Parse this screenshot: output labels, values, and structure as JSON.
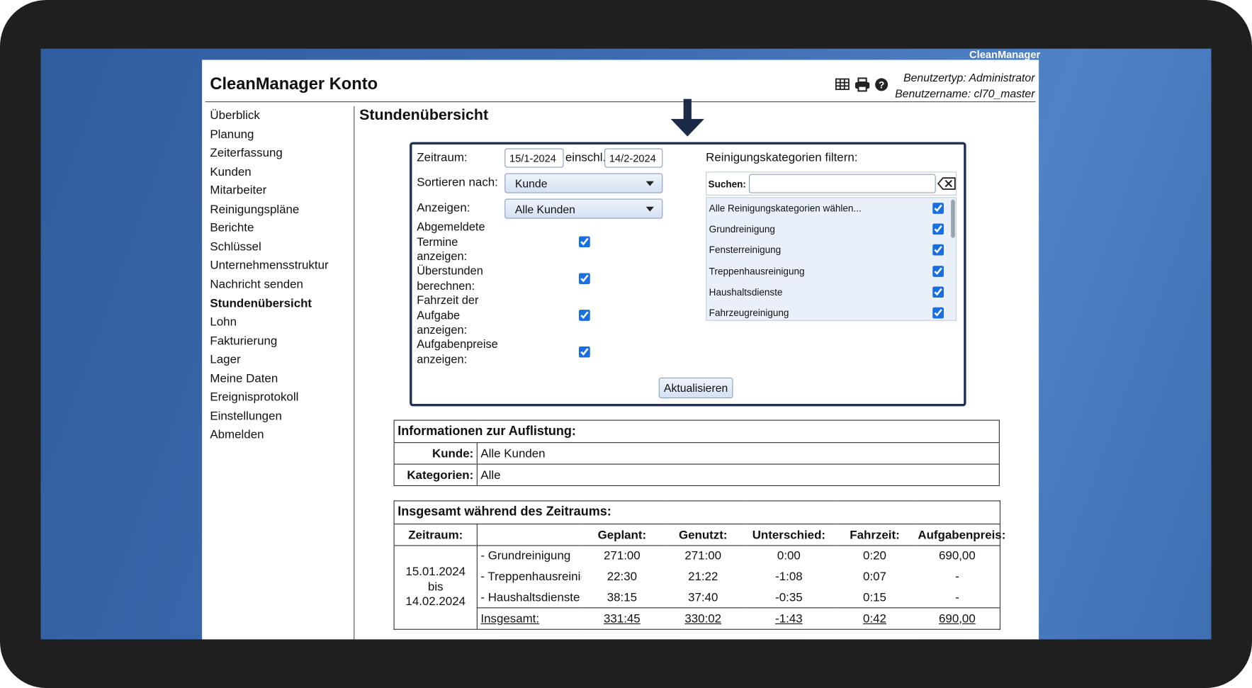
{
  "brand": "CleanManager",
  "header": {
    "title": "CleanManager Konto",
    "user_type": "Benutzertyp: Administrator",
    "user_name": "Benutzername: cl70_master"
  },
  "nav": {
    "items": [
      "Überblick",
      "Planung",
      "Zeiterfassung",
      "Kunden",
      "Mitarbeiter",
      "Reinigungspläne",
      "Berichte",
      "Schlüssel",
      "Unternehmensstruktur",
      "Nachricht senden",
      "Stundenübersicht",
      "Lohn",
      "Fakturierung",
      "Lager",
      "Meine Daten",
      "Ereignisprotokoll",
      "Einstellungen",
      "Abmelden"
    ],
    "active": 10
  },
  "page_title": "Stundenübersicht",
  "filter": {
    "period_label": "Zeitraum:",
    "from": "15/1-2024",
    "inclusive": "einschl.",
    "to": "14/2-2024",
    "sort_label": "Sortieren nach:",
    "sort_value": "Kunde",
    "show_label": "Anzeigen:",
    "show_value": "Alle Kunden",
    "options": [
      {
        "label": "Abgemeldete Termine anzeigen:",
        "checked": true
      },
      {
        "label": "Überstunden berechnen:",
        "checked": true
      },
      {
        "label": "Fahrzeit der Aufgabe anzeigen:",
        "checked": true
      },
      {
        "label": "Aufgabenpreise anzeigen:",
        "checked": true
      }
    ],
    "categories_label": "Reinigungskategorien filtern:",
    "search_label": "Suchen:",
    "categories": [
      {
        "label": "Alle Reinigungskategorien wählen...",
        "checked": true
      },
      {
        "label": "Grundreinigung",
        "checked": true
      },
      {
        "label": "Fensterreinigung",
        "checked": true
      },
      {
        "label": "Treppenhausreinigung",
        "checked": true
      },
      {
        "label": "Haushaltsdienste",
        "checked": true
      },
      {
        "label": "Fahrzeugreinigung",
        "checked": true
      }
    ],
    "button": "Aktualisieren"
  },
  "info": {
    "title": "Informationen zur Auflistung:",
    "rows": [
      [
        "Kunde:",
        "Alle Kunden"
      ],
      [
        "Kategorien:",
        "Alle"
      ]
    ]
  },
  "summary": {
    "title": "Insgesamt während des Zeitraums:",
    "period_header": "Zeitraum:",
    "columns": [
      "Geplant:",
      "Genutzt:",
      "Unterschied:",
      "Fahrzeit:",
      "Aufgabenpreis:"
    ],
    "period": [
      "15.01.2024",
      "bis",
      "14.02.2024"
    ],
    "rows": [
      {
        "name": "- Grundreinigung",
        "values": [
          "271:00",
          "271:00",
          "0:00",
          "0:20",
          "690,00"
        ]
      },
      {
        "name": "- Treppenhausreinig",
        "values": [
          "22:30",
          "21:22",
          "-1:08",
          "0:07",
          "-"
        ]
      },
      {
        "name": "- Haushaltsdienste",
        "values": [
          "38:15",
          "37:40",
          "-0:35",
          "0:15",
          "-"
        ]
      }
    ],
    "total": {
      "name": "Insgesamt:",
      "values": [
        "331:45",
        "330:02",
        "-1:43",
        "0:42",
        "690,00"
      ]
    }
  }
}
